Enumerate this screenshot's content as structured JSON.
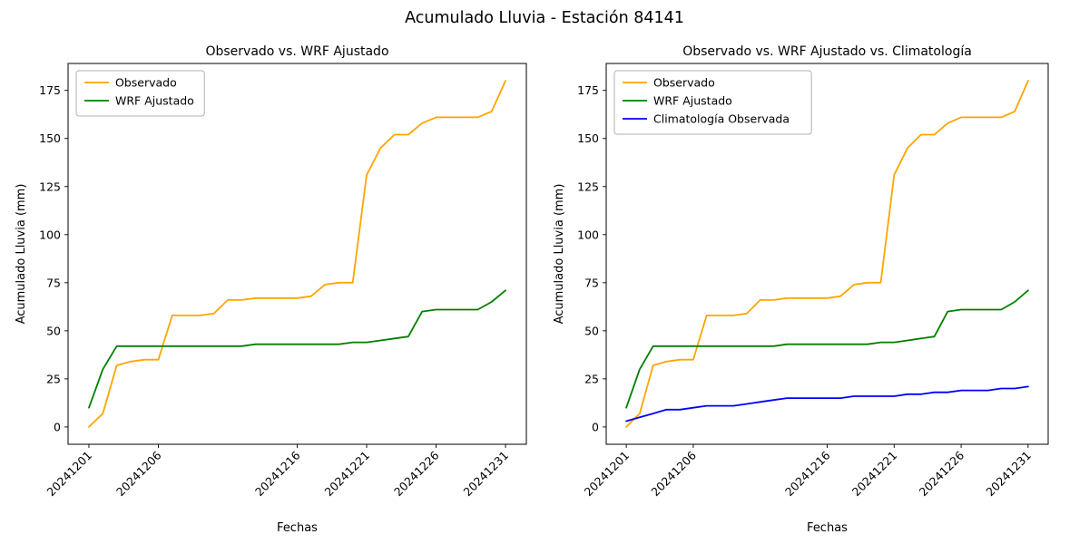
{
  "figure": {
    "title": "Acumulado Lluvia - Estación 84141"
  },
  "chart_data": [
    {
      "type": "line",
      "title": "Observado vs. WRF Ajustado",
      "xlabel": "Fechas",
      "ylabel": "Acumulado Lluvia (mm)",
      "x": [
        "20241201",
        "20241202",
        "20241203",
        "20241204",
        "20241205",
        "20241206",
        "20241207",
        "20241208",
        "20241209",
        "20241210",
        "20241211",
        "20241212",
        "20241213",
        "20241214",
        "20241215",
        "20241216",
        "20241217",
        "20241218",
        "20241219",
        "20241220",
        "20241221",
        "20241222",
        "20241223",
        "20241224",
        "20241225",
        "20241226",
        "20241227",
        "20241228",
        "20241229",
        "20241230",
        "20241231"
      ],
      "xticks": [
        "20241201",
        "20241206",
        "20241216",
        "20241221",
        "20241226",
        "20241231"
      ],
      "yticks": [
        0,
        25,
        50,
        75,
        100,
        125,
        150,
        175
      ],
      "xlim": [
        -1.5,
        31.5
      ],
      "ylim": [
        -9,
        189
      ],
      "grid": false,
      "legend_position": "upper left",
      "series": [
        {
          "name": "Observado",
          "color": "#ffa500",
          "values": [
            0,
            7,
            32,
            34,
            35,
            35,
            58,
            58,
            58,
            59,
            66,
            66,
            67,
            67,
            67,
            67,
            68,
            74,
            75,
            75,
            131,
            145,
            152,
            152,
            158,
            161,
            161,
            161,
            161,
            164,
            180
          ]
        },
        {
          "name": "WRF Ajustado",
          "color": "#008000",
          "values": [
            10,
            30,
            42,
            42,
            42,
            42,
            42,
            42,
            42,
            42,
            42,
            42,
            43,
            43,
            43,
            43,
            43,
            43,
            43,
            44,
            44,
            45,
            46,
            47,
            60,
            61,
            61,
            61,
            61,
            65,
            71
          ]
        }
      ]
    },
    {
      "type": "line",
      "title": "Observado vs. WRF Ajustado vs. Climatología",
      "xlabel": "Fechas",
      "ylabel": "Acumulado Lluvia (mm)",
      "x": [
        "20241201",
        "20241202",
        "20241203",
        "20241204",
        "20241205",
        "20241206",
        "20241207",
        "20241208",
        "20241209",
        "20241210",
        "20241211",
        "20241212",
        "20241213",
        "20241214",
        "20241215",
        "20241216",
        "20241217",
        "20241218",
        "20241219",
        "20241220",
        "20241221",
        "20241222",
        "20241223",
        "20241224",
        "20241225",
        "20241226",
        "20241227",
        "20241228",
        "20241229",
        "20241230",
        "20241231"
      ],
      "xticks": [
        "20241201",
        "20241206",
        "20241216",
        "20241221",
        "20241226",
        "20241231"
      ],
      "yticks": [
        0,
        25,
        50,
        75,
        100,
        125,
        150,
        175
      ],
      "xlim": [
        -1.5,
        31.5
      ],
      "ylim": [
        -9,
        189
      ],
      "grid": false,
      "legend_position": "upper left",
      "series": [
        {
          "name": "Observado",
          "color": "#ffa500",
          "values": [
            0,
            7,
            32,
            34,
            35,
            35,
            58,
            58,
            58,
            59,
            66,
            66,
            67,
            67,
            67,
            67,
            68,
            74,
            75,
            75,
            131,
            145,
            152,
            152,
            158,
            161,
            161,
            161,
            161,
            164,
            180
          ]
        },
        {
          "name": "WRF Ajustado",
          "color": "#008000",
          "values": [
            10,
            30,
            42,
            42,
            42,
            42,
            42,
            42,
            42,
            42,
            42,
            42,
            43,
            43,
            43,
            43,
            43,
            43,
            43,
            44,
            44,
            45,
            46,
            47,
            60,
            61,
            61,
            61,
            61,
            65,
            71
          ]
        },
        {
          "name": "Climatología Observada",
          "color": "#0000ff",
          "values": [
            3,
            5,
            7,
            9,
            9,
            10,
            11,
            11,
            11,
            12,
            13,
            14,
            15,
            15,
            15,
            15,
            15,
            16,
            16,
            16,
            16,
            17,
            17,
            18,
            18,
            19,
            19,
            19,
            20,
            20,
            21
          ]
        }
      ]
    }
  ]
}
